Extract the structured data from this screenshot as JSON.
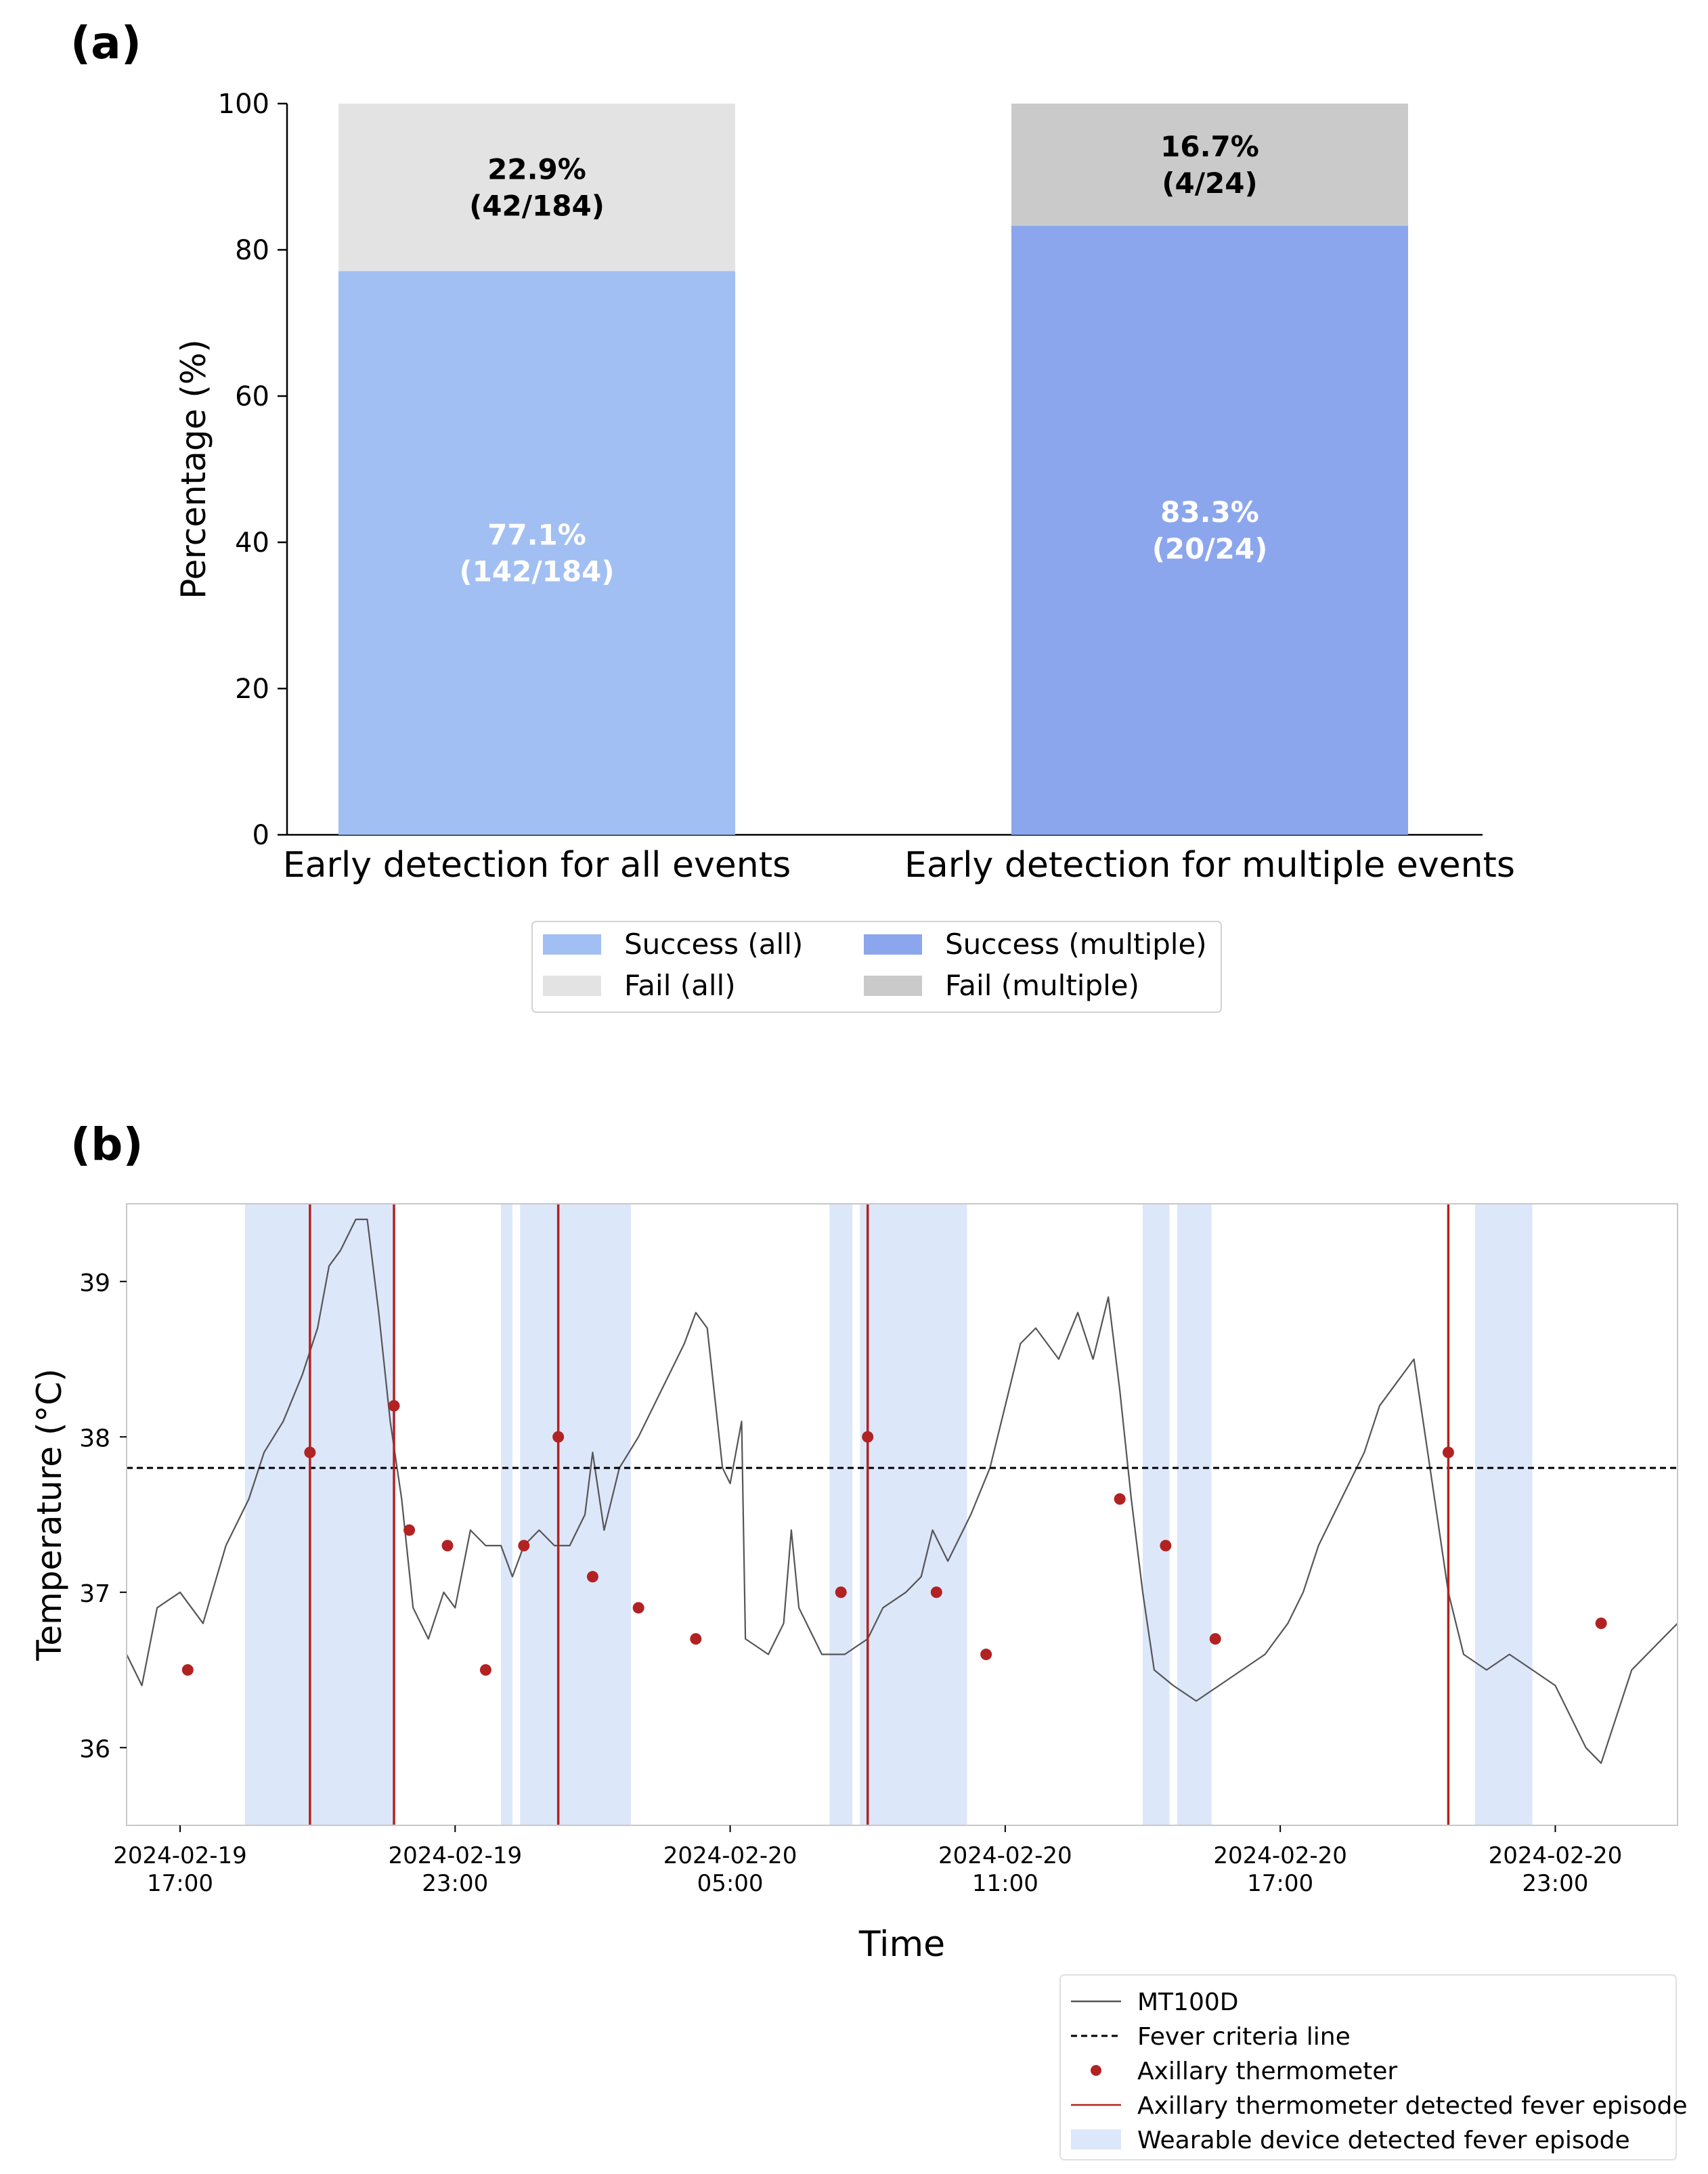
{
  "chart_data": [
    {
      "panel": "(a)",
      "type": "bar",
      "stacked": true,
      "categories": [
        "Early detection for all events",
        "Early detection for multiple events"
      ],
      "ylabel": "Percentage (%)",
      "ylim": [
        0,
        100
      ],
      "yticks": [
        0,
        20,
        40,
        60,
        80,
        100
      ],
      "bars": [
        {
          "category": "Early detection for all events",
          "success": {
            "name": "Success (all)",
            "value": 77.1,
            "pct_label": "77.1%",
            "count_label": "(142/184)",
            "color": "#a1bff2"
          },
          "fail": {
            "name": "Fail (all)",
            "value": 22.9,
            "pct_label": "22.9%",
            "count_label": "(42/184)",
            "color": "#e3e3e3"
          }
        },
        {
          "category": "Early detection for multiple events",
          "success": {
            "name": "Success (multiple)",
            "value": 83.3,
            "pct_label": "83.3%",
            "count_label": "(20/24)",
            "color": "#8ba6ed"
          },
          "fail": {
            "name": "Fail (multiple)",
            "value": 16.7,
            "pct_label": "16.7%",
            "count_label": "(4/24)",
            "color": "#cacaca"
          }
        }
      ],
      "legend": {
        "placement": "bottom-center",
        "items": [
          {
            "label": "Success (all)",
            "color": "#a1bff2"
          },
          {
            "label": "Success (multiple)",
            "color": "#8ba6ed"
          },
          {
            "label": "Fail (all)",
            "color": "#e3e3e3"
          },
          {
            "label": "Fail (multiple)",
            "color": "#cacaca"
          }
        ]
      }
    },
    {
      "panel": "(b)",
      "type": "line",
      "xlabel": "Time",
      "ylabel": "Temperature (°C)",
      "xlim": [
        "2024-02-19 15:50",
        "2024-02-21 01:40"
      ],
      "ylim": [
        35.5,
        39.5
      ],
      "yticks": [
        36,
        37,
        38,
        39
      ],
      "xticks": [
        {
          "t": "2024-02-19 17:00",
          "line1": "2024-02-19",
          "line2": "17:00"
        },
        {
          "t": "2024-02-19 23:00",
          "line1": "2024-02-19",
          "line2": "23:00"
        },
        {
          "t": "2024-02-20 05:00",
          "line1": "2024-02-20",
          "line2": "05:00"
        },
        {
          "t": "2024-02-20 11:00",
          "line1": "2024-02-20",
          "line2": "11:00"
        },
        {
          "t": "2024-02-20 17:00",
          "line1": "2024-02-20",
          "line2": "17:00"
        },
        {
          "t": "2024-02-20 23:00",
          "line1": "2024-02-20",
          "line2": "23:00"
        }
      ],
      "fever_criteria": 37.8,
      "series": [
        {
          "name": "MT100D",
          "color": "#555555",
          "points": [
            [
              "2024-02-19 15:50",
              36.6
            ],
            [
              "2024-02-19 16:10",
              36.4
            ],
            [
              "2024-02-19 16:30",
              36.9
            ],
            [
              "2024-02-19 17:00",
              37.0
            ],
            [
              "2024-02-19 17:30",
              36.8
            ],
            [
              "2024-02-19 18:00",
              37.3
            ],
            [
              "2024-02-19 18:30",
              37.6
            ],
            [
              "2024-02-19 18:50",
              37.9
            ],
            [
              "2024-02-19 19:15",
              38.1
            ],
            [
              "2024-02-19 19:40",
              38.4
            ],
            [
              "2024-02-19 20:00",
              38.7
            ],
            [
              "2024-02-19 20:15",
              39.1
            ],
            [
              "2024-02-19 20:30",
              39.2
            ],
            [
              "2024-02-19 20:50",
              39.4
            ],
            [
              "2024-02-19 21:05",
              39.4
            ],
            [
              "2024-02-19 21:20",
              38.8
            ],
            [
              "2024-02-19 21:35",
              38.1
            ],
            [
              "2024-02-19 21:50",
              37.6
            ],
            [
              "2024-02-19 22:05",
              36.9
            ],
            [
              "2024-02-19 22:25",
              36.7
            ],
            [
              "2024-02-19 22:45",
              37.0
            ],
            [
              "2024-02-19 23:00",
              36.9
            ],
            [
              "2024-02-19 23:20",
              37.4
            ],
            [
              "2024-02-19 23:40",
              37.3
            ],
            [
              "2024-02-20 00:00",
              37.3
            ],
            [
              "2024-02-20 00:15",
              37.1
            ],
            [
              "2024-02-20 00:30",
              37.3
            ],
            [
              "2024-02-20 00:50",
              37.4
            ],
            [
              "2024-02-20 01:10",
              37.3
            ],
            [
              "2024-02-20 01:30",
              37.3
            ],
            [
              "2024-02-20 01:50",
              37.5
            ],
            [
              "2024-02-20 02:00",
              37.9
            ],
            [
              "2024-02-20 02:15",
              37.4
            ],
            [
              "2024-02-20 02:35",
              37.8
            ],
            [
              "2024-02-20 03:00",
              38.0
            ],
            [
              "2024-02-20 03:30",
              38.3
            ],
            [
              "2024-02-20 04:00",
              38.6
            ],
            [
              "2024-02-20 04:15",
              38.8
            ],
            [
              "2024-02-20 04:30",
              38.7
            ],
            [
              "2024-02-20 04:50",
              37.8
            ],
            [
              "2024-02-20 05:00",
              37.7
            ],
            [
              "2024-02-20 05:15",
              38.1
            ],
            [
              "2024-02-20 05:20",
              36.7
            ],
            [
              "2024-02-20 05:50",
              36.6
            ],
            [
              "2024-02-20 06:10",
              36.8
            ],
            [
              "2024-02-20 06:20",
              37.4
            ],
            [
              "2024-02-20 06:30",
              36.9
            ],
            [
              "2024-02-20 07:00",
              36.6
            ],
            [
              "2024-02-20 07:30",
              36.6
            ],
            [
              "2024-02-20 08:00",
              36.7
            ],
            [
              "2024-02-20 08:20",
              36.9
            ],
            [
              "2024-02-20 08:50",
              37.0
            ],
            [
              "2024-02-20 09:10",
              37.1
            ],
            [
              "2024-02-20 09:25",
              37.4
            ],
            [
              "2024-02-20 09:45",
              37.2
            ],
            [
              "2024-02-20 10:15",
              37.5
            ],
            [
              "2024-02-20 10:40",
              37.8
            ],
            [
              "2024-02-20 11:00",
              38.2
            ],
            [
              "2024-02-20 11:20",
              38.6
            ],
            [
              "2024-02-20 11:40",
              38.7
            ],
            [
              "2024-02-20 12:10",
              38.5
            ],
            [
              "2024-02-20 12:35",
              38.8
            ],
            [
              "2024-02-20 12:55",
              38.5
            ],
            [
              "2024-02-20 13:15",
              38.9
            ],
            [
              "2024-02-20 13:30",
              38.3
            ],
            [
              "2024-02-20 13:45",
              37.6
            ],
            [
              "2024-02-20 14:00",
              37.0
            ],
            [
              "2024-02-20 14:15",
              36.5
            ],
            [
              "2024-02-20 14:40",
              36.4
            ],
            [
              "2024-02-20 15:10",
              36.3
            ],
            [
              "2024-02-20 15:40",
              36.4
            ],
            [
              "2024-02-20 16:10",
              36.5
            ],
            [
              "2024-02-20 16:40",
              36.6
            ],
            [
              "2024-02-20 17:10",
              36.8
            ],
            [
              "2024-02-20 17:30",
              37.0
            ],
            [
              "2024-02-20 17:50",
              37.3
            ],
            [
              "2024-02-20 18:20",
              37.6
            ],
            [
              "2024-02-20 18:50",
              37.9
            ],
            [
              "2024-02-20 19:10",
              38.2
            ],
            [
              "2024-02-20 19:40",
              38.4
            ],
            [
              "2024-02-20 19:55",
              38.5
            ],
            [
              "2024-02-20 20:10",
              38.0
            ],
            [
              "2024-02-20 20:25",
              37.5
            ],
            [
              "2024-02-20 20:40",
              37.0
            ],
            [
              "2024-02-20 21:00",
              36.6
            ],
            [
              "2024-02-20 21:30",
              36.5
            ],
            [
              "2024-02-20 22:00",
              36.6
            ],
            [
              "2024-02-20 22:30",
              36.5
            ],
            [
              "2024-02-20 23:00",
              36.4
            ],
            [
              "2024-02-20 23:20",
              36.2
            ],
            [
              "2024-02-20 23:40",
              36.0
            ],
            [
              "2024-02-21 00:00",
              35.9
            ],
            [
              "2024-02-21 00:20",
              36.2
            ],
            [
              "2024-02-21 00:40",
              36.5
            ],
            [
              "2024-02-21 01:00",
              36.6
            ],
            [
              "2024-02-21 01:20",
              36.7
            ],
            [
              "2024-02-21 01:40",
              36.8
            ]
          ]
        },
        {
          "name": "Axillary thermometer",
          "color": "#b22222",
          "points": [
            [
              "2024-02-19 17:10",
              36.5
            ],
            [
              "2024-02-19 19:50",
              37.9
            ],
            [
              "2024-02-19 21:40",
              38.2
            ],
            [
              "2024-02-19 22:00",
              37.4
            ],
            [
              "2024-02-19 22:50",
              37.3
            ],
            [
              "2024-02-19 23:40",
              36.5
            ],
            [
              "2024-02-20 00:30",
              37.3
            ],
            [
              "2024-02-20 01:15",
              38.0
            ],
            [
              "2024-02-20 02:00",
              37.1
            ],
            [
              "2024-02-20 03:00",
              36.9
            ],
            [
              "2024-02-20 04:15",
              36.7
            ],
            [
              "2024-02-20 07:25",
              37.0
            ],
            [
              "2024-02-20 08:00",
              38.0
            ],
            [
              "2024-02-20 09:30",
              37.0
            ],
            [
              "2024-02-20 10:35",
              36.6
            ],
            [
              "2024-02-20 13:30",
              37.6
            ],
            [
              "2024-02-20 14:30",
              37.3
            ],
            [
              "2024-02-20 15:35",
              36.7
            ],
            [
              "2024-02-20 20:40",
              37.9
            ],
            [
              "2024-02-21 00:00",
              36.8
            ]
          ]
        }
      ],
      "axillary_fever_episodes": [
        "2024-02-19 19:50",
        "2024-02-19 21:40",
        "2024-02-20 01:15",
        "2024-02-20 08:00",
        "2024-02-20 20:40"
      ],
      "wearable_fever_episodes": [
        [
          "2024-02-19 18:25",
          "2024-02-19 21:40"
        ],
        [
          "2024-02-20 00:00",
          "2024-02-20 00:15"
        ],
        [
          "2024-02-20 00:25",
          "2024-02-20 02:50"
        ],
        [
          "2024-02-20 07:10",
          "2024-02-20 07:40"
        ],
        [
          "2024-02-20 07:50",
          "2024-02-20 10:10"
        ],
        [
          "2024-02-20 14:00",
          "2024-02-20 14:35"
        ],
        [
          "2024-02-20 14:45",
          "2024-02-20 15:30"
        ],
        [
          "2024-02-20 21:15",
          "2024-02-20 22:30"
        ]
      ],
      "legend": {
        "placement": "bottom-right",
        "items": [
          {
            "label": "MT100D",
            "kind": "line",
            "color": "#555555"
          },
          {
            "label": "Fever criteria line",
            "kind": "dashed",
            "color": "#000000"
          },
          {
            "label": "Axillary thermometer",
            "kind": "dot",
            "color": "#b22222"
          },
          {
            "label": "Axillary thermometer detected fever episode",
            "kind": "line",
            "color": "#b22222"
          },
          {
            "label": "Wearable device detected fever episode",
            "kind": "patch",
            "color": "#dde7fa"
          }
        ]
      }
    }
  ]
}
